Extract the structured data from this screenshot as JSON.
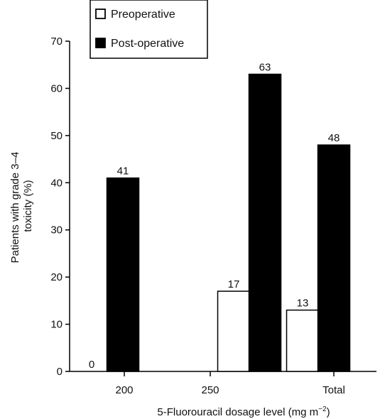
{
  "chart_data": {
    "type": "bar",
    "categories": [
      "200",
      "250",
      "Total"
    ],
    "series": [
      {
        "name": "Preoperative",
        "values": [
          0,
          17,
          13
        ],
        "data_labels": [
          "0",
          "17",
          "13"
        ],
        "color": "#ffffff"
      },
      {
        "name": "Post-operative",
        "values": [
          41,
          63,
          48
        ],
        "data_labels": [
          "41",
          "63",
          "48"
        ],
        "color": "#000000"
      }
    ],
    "xlabel": "5-Fluorouracil dosage level (mg m−2)",
    "xlabel_parts": {
      "main": "5-Fluorouracil dosage level (mg m",
      "sup": "−2",
      "close": ")"
    },
    "ylabel_lines": [
      "Patients with grade 3–4",
      "toxicity (%)"
    ],
    "ylim": [
      0,
      70
    ],
    "yticks": [
      0,
      10,
      20,
      30,
      40,
      50,
      60,
      70
    ],
    "grid": false,
    "legend_position": "top-left"
  }
}
